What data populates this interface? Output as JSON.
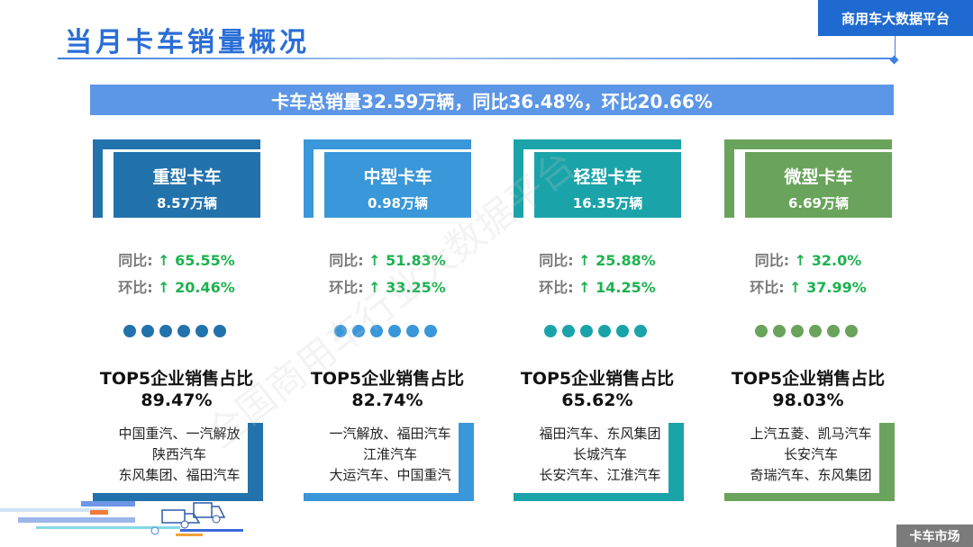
{
  "header": {
    "title": "当月卡车销量概况",
    "platform": "商用车大数据平台"
  },
  "banner": "卡车总销量32.59万辆，同比36.48%，环比20.66%",
  "watermark": "全国商用车行业大数据平台",
  "labels": {
    "yoy": "同比:",
    "mom": "环比:",
    "arrow": "↑",
    "top5": "TOP5企业销售占比"
  },
  "cards": [
    {
      "name": "重型卡车",
      "volume": "8.57万辆",
      "yoy": "65.55%",
      "mom": "20.46%",
      "top5_pct": "89.47%",
      "companies": [
        "中国重汽、一汽解放",
        "陕西汽车",
        "东风集团、福田汽车"
      ],
      "color": "#2272ac"
    },
    {
      "name": "中型卡车",
      "volume": "0.98万辆",
      "yoy": "51.83%",
      "mom": "33.25%",
      "top5_pct": "82.74%",
      "companies": [
        "一汽解放、福田汽车",
        "江淮汽车",
        "大运汽车、中国重汽"
      ],
      "color": "#3a97d9"
    },
    {
      "name": "轻型卡车",
      "volume": "16.35万辆",
      "yoy": "25.88%",
      "mom": "14.25%",
      "top5_pct": "65.62%",
      "companies": [
        "福田汽车、东风集团",
        "长城汽车",
        "长安汽车、江淮汽车"
      ],
      "color": "#1ba3aa"
    },
    {
      "name": "微型卡车",
      "volume": "6.69万辆",
      "yoy": "32.0%",
      "mom": "37.99%",
      "top5_pct": "98.03%",
      "companies": [
        "上汽五菱、凯马汽车",
        "长安汽车",
        "奇瑞汽车、东风集团"
      ],
      "color": "#6aa35c"
    }
  ],
  "footer": {
    "section": "卡车市场"
  }
}
